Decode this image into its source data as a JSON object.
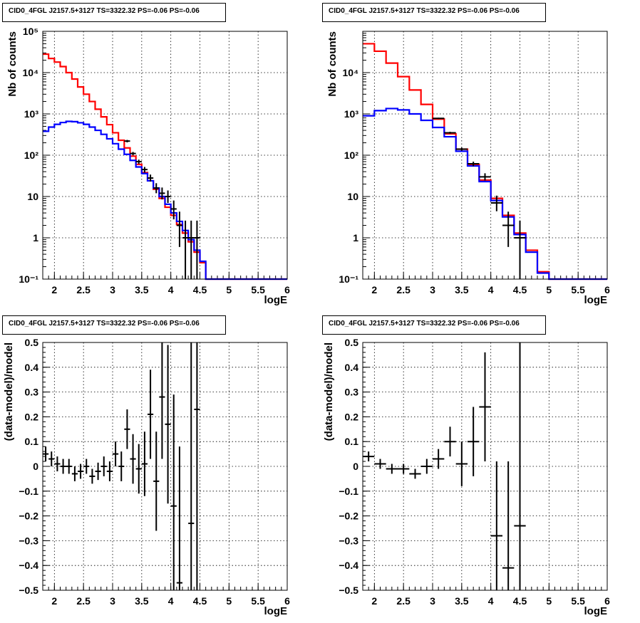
{
  "chart_data": [
    {
      "id": "counts_fine",
      "type": "histogram-errorbar",
      "title": "CID0_4FGL J2157.5+3127 TS=3322.32 PS=-0.06 PS=-0.06",
      "xlabel": "logE",
      "ylabel": "Nb of counts",
      "xlim": [
        1.8,
        6
      ],
      "ylim": [
        0.1,
        100000
      ],
      "yscale": "log",
      "grid": true,
      "xticks": [
        2,
        2.5,
        3,
        3.5,
        4,
        4.5,
        5,
        5.5,
        6
      ],
      "xtick_labels": [
        "2",
        "2.5",
        "3",
        "3.5",
        "4",
        "4.5",
        "5",
        "5.5",
        "6"
      ],
      "yticks": [
        0.1,
        1,
        10,
        100,
        1000,
        10000,
        100000
      ],
      "ytick_labels": [
        "10⁻¹",
        "1",
        "10",
        "10²",
        "10³",
        "10⁴",
        "10⁵"
      ],
      "bin_width": 0.1,
      "series": [
        {
          "color": "#ff0000",
          "style": "step",
          "x": [
            1.8,
            1.9,
            2.0,
            2.1,
            2.2,
            2.3,
            2.4,
            2.5,
            2.6,
            2.7,
            2.8,
            2.9,
            3.0,
            3.1,
            3.2,
            3.3,
            3.4,
            3.5,
            3.6,
            3.7,
            3.8,
            3.9,
            4.0,
            4.1,
            4.2,
            4.3,
            4.4,
            4.5,
            4.6,
            4.7,
            4.8,
            4.9,
            5.0,
            5.1,
            5.2,
            5.3,
            5.4,
            5.5,
            5.6,
            5.7,
            5.8,
            5.9
          ],
          "values": [
            28000,
            22000,
            18000,
            14000,
            10000,
            7000,
            4500,
            3000,
            2000,
            1300,
            850,
            550,
            350,
            230,
            150,
            95,
            60,
            38,
            24,
            15,
            9,
            5.5,
            3.5,
            2.1,
            1.3,
            0.8,
            0.45,
            0.25,
            0.1,
            0.1,
            0.1,
            0.1,
            0.1,
            0.1,
            0.1,
            0.1,
            0.1,
            0.1,
            0.1,
            0.1,
            0.1,
            0.1
          ]
        },
        {
          "color": "#0000ff",
          "style": "step",
          "x": [
            1.8,
            1.9,
            2.0,
            2.1,
            2.2,
            2.3,
            2.4,
            2.5,
            2.6,
            2.7,
            2.8,
            2.9,
            3.0,
            3.1,
            3.2,
            3.3,
            3.4,
            3.5,
            3.6,
            3.7,
            3.8,
            3.9,
            4.0,
            4.1,
            4.2,
            4.3,
            4.4,
            4.5,
            4.6,
            4.7,
            4.8,
            4.9,
            5.0,
            5.1,
            5.2,
            5.3,
            5.4,
            5.5,
            5.6,
            5.7,
            5.8,
            5.9
          ],
          "values": [
            380,
            480,
            560,
            620,
            660,
            650,
            610,
            560,
            480,
            400,
            320,
            250,
            190,
            140,
            105,
            75,
            52,
            36,
            24,
            16,
            10,
            6.5,
            4,
            2.5,
            1.5,
            0.9,
            0.5,
            0.27,
            0.1,
            0.1,
            0.1,
            0.1,
            0.1,
            0.1,
            0.1,
            0.1,
            0.1,
            0.1,
            0.1,
            0.1,
            0.1,
            0.1
          ]
        }
      ],
      "points": {
        "color": "#000000",
        "x": [
          3.25,
          3.35,
          3.45,
          3.55,
          3.65,
          3.75,
          3.85,
          3.95,
          4.05,
          4.15,
          4.25,
          4.35,
          4.45
        ],
        "y": [
          220,
          110,
          70,
          45,
          28,
          16,
          12,
          10,
          5,
          2.0,
          1.0,
          1.0,
          1.0
        ],
        "yerr_low": [
          15,
          10,
          8,
          7,
          5,
          4,
          3.5,
          3,
          2.2,
          1.4,
          0.99,
          0.99,
          0.99
        ],
        "yerr_high": [
          15,
          10,
          8,
          7,
          6,
          5,
          4.5,
          4,
          3,
          2.3,
          1.6,
          1.6,
          1.6
        ],
        "xerr": 0.05
      }
    },
    {
      "id": "counts_coarse",
      "type": "histogram-errorbar",
      "title": "CID0_4FGL J2157.5+3127 TS=3322.32 PS=-0.06 PS=-0.06",
      "xlabel": "logE",
      "ylabel": "Nb of counts",
      "xlim": [
        1.8,
        6
      ],
      "ylim": [
        0.1,
        100000
      ],
      "yscale": "log",
      "grid": true,
      "xticks": [
        2,
        2.5,
        3,
        3.5,
        4,
        4.5,
        5,
        5.5,
        6
      ],
      "xtick_labels": [
        "2",
        "2.5",
        "3",
        "3.5",
        "4",
        "4.5",
        "5",
        "5.5",
        "6"
      ],
      "yticks": [
        0.1,
        1,
        10,
        100,
        1000,
        10000
      ],
      "ytick_labels": [
        "10⁻¹",
        "1",
        "10",
        "10²",
        "10³",
        "10⁴"
      ],
      "bin_width": 0.2,
      "series": [
        {
          "color": "#ff0000",
          "style": "step",
          "x": [
            1.8,
            2.0,
            2.2,
            2.4,
            2.6,
            2.8,
            3.0,
            3.2,
            3.4,
            3.6,
            3.8,
            4.0,
            4.2,
            4.4,
            4.6,
            4.8,
            5.0,
            5.2,
            5.4,
            5.6,
            5.8
          ],
          "values": [
            50000,
            33000,
            17000,
            8000,
            3800,
            1700,
            750,
            330,
            140,
            60,
            25,
            9,
            3.5,
            1.3,
            0.5,
            0.15,
            0.1,
            0.1,
            0.1,
            0.1,
            0.1
          ]
        },
        {
          "color": "#0000ff",
          "style": "step",
          "x": [
            1.8,
            2.0,
            2.2,
            2.4,
            2.6,
            2.8,
            3.0,
            3.2,
            3.4,
            3.6,
            3.8,
            4.0,
            4.2,
            4.4,
            4.6,
            4.8,
            5.0,
            5.2,
            5.4,
            5.6,
            5.8
          ],
          "values": [
            900,
            1200,
            1350,
            1250,
            1000,
            700,
            470,
            280,
            125,
            55,
            23,
            8,
            3.2,
            1.2,
            0.45,
            0.14,
            0.1,
            0.1,
            0.1,
            0.1,
            0.1
          ]
        }
      ],
      "points": {
        "color": "#000000",
        "x": [
          3.1,
          3.3,
          3.5,
          3.7,
          3.9,
          4.1,
          4.3,
          4.5
        ],
        "y": [
          780,
          350,
          140,
          62,
          30,
          7,
          2.0,
          1.0
        ],
        "yerr_low": [
          28,
          19,
          12,
          8,
          5.5,
          2.6,
          1.4,
          0.99
        ],
        "yerr_high": [
          28,
          19,
          12,
          8,
          6.5,
          3.5,
          2.3,
          1.6
        ],
        "xerr": 0.1
      }
    },
    {
      "id": "residuals_fine",
      "type": "errorbar",
      "title": "CID0_4FGL J2157.5+3127 TS=3322.32 PS=-0.06 PS=-0.06",
      "xlabel": "logE",
      "ylabel": "(data-model)/model",
      "xlim": [
        1.8,
        6
      ],
      "ylim": [
        -0.5,
        0.5
      ],
      "grid": true,
      "xticks": [
        2,
        2.5,
        3,
        3.5,
        4,
        4.5,
        5,
        5.5,
        6
      ],
      "xtick_labels": [
        "2",
        "2.5",
        "3",
        "3.5",
        "4",
        "4.5",
        "5",
        "5.5",
        "6"
      ],
      "yticks": [
        -0.5,
        -0.4,
        -0.3,
        -0.2,
        -0.1,
        0,
        0.1,
        0.2,
        0.3,
        0.4,
        0.5
      ],
      "ytick_labels": [
        "−0.5",
        "−0.4",
        "−0.3",
        "−0.2",
        "−0.1",
        "0",
        "0.1",
        "0.2",
        "0.3",
        "0.4",
        "0.5"
      ],
      "points": {
        "color": "#000000",
        "x": [
          1.85,
          1.95,
          2.05,
          2.15,
          2.25,
          2.35,
          2.45,
          2.55,
          2.65,
          2.75,
          2.85,
          2.95,
          3.05,
          3.15,
          3.25,
          3.35,
          3.45,
          3.55,
          3.65,
          3.75,
          3.85,
          3.95,
          4.05,
          4.15,
          4.35,
          4.45
        ],
        "y": [
          0.05,
          0.03,
          0.01,
          0.0,
          0.0,
          -0.03,
          -0.02,
          0.0,
          -0.04,
          -0.02,
          0.0,
          -0.02,
          0.05,
          0.0,
          0.15,
          0.03,
          -0.01,
          0.01,
          0.21,
          -0.06,
          0.28,
          0.17,
          -0.16,
          -0.47,
          -0.23,
          0.23
        ],
        "yerr": [
          0.03,
          0.03,
          0.03,
          0.03,
          0.03,
          0.03,
          0.03,
          0.03,
          0.03,
          0.035,
          0.04,
          0.04,
          0.05,
          0.06,
          0.08,
          0.1,
          0.1,
          0.13,
          0.18,
          0.2,
          0.25,
          0.32,
          0.45,
          0.55,
          0.8,
          0.9
        ],
        "xerr": 0.05
      }
    },
    {
      "id": "residuals_coarse",
      "type": "errorbar",
      "title": "CID0_4FGL J2157.5+3127 TS=3322.32 PS=-0.06 PS=-0.06",
      "xlabel": "logE",
      "ylabel": "(data-model)/model",
      "xlim": [
        1.8,
        6
      ],
      "ylim": [
        -0.5,
        0.5
      ],
      "grid": true,
      "xticks": [
        2,
        2.5,
        3,
        3.5,
        4,
        4.5,
        5,
        5.5,
        6
      ],
      "xtick_labels": [
        "2",
        "2.5",
        "3",
        "3.5",
        "4",
        "4.5",
        "5",
        "5.5",
        "6"
      ],
      "yticks": [
        -0.5,
        -0.4,
        -0.3,
        -0.2,
        -0.1,
        0,
        0.1,
        0.2,
        0.3,
        0.4,
        0.5
      ],
      "ytick_labels": [
        "−0.5",
        "−0.4",
        "−0.3",
        "−0.2",
        "−0.1",
        "0",
        "0.1",
        "0.2",
        "0.3",
        "0.4",
        "0.5"
      ],
      "points": {
        "color": "#000000",
        "x": [
          1.9,
          2.1,
          2.3,
          2.5,
          2.7,
          2.9,
          3.1,
          3.3,
          3.5,
          3.7,
          3.9,
          4.1,
          4.3,
          4.5
        ],
        "y": [
          0.04,
          0.01,
          -0.01,
          -0.01,
          -0.03,
          0.0,
          0.03,
          0.1,
          0.01,
          0.1,
          0.24,
          -0.28,
          -0.41,
          -0.24
        ],
        "yerr": [
          0.02,
          0.02,
          0.02,
          0.02,
          0.02,
          0.03,
          0.04,
          0.06,
          0.09,
          0.14,
          0.22,
          0.3,
          0.43,
          0.8
        ],
        "xerr": 0.1
      }
    }
  ]
}
